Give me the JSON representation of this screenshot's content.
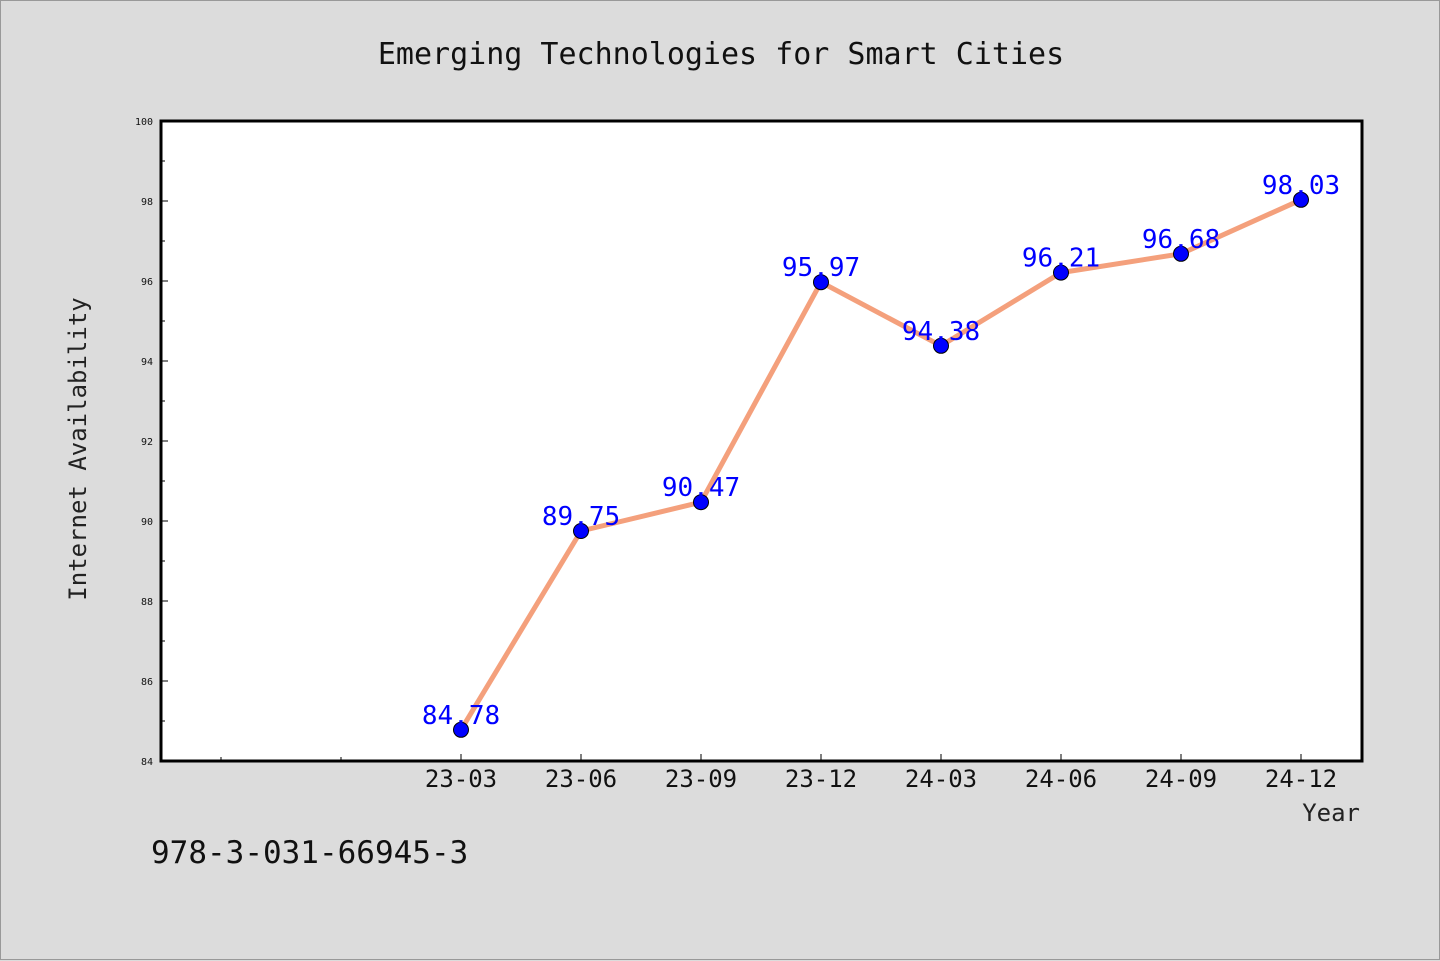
{
  "chart_data": {
    "type": "line",
    "title": "Emerging Technologies for Smart Cities",
    "xlabel": "Year",
    "ylabel": "Internet Availability",
    "categories": [
      "23-03",
      "23-06",
      "23-09",
      "23-12",
      "24-03",
      "24-06",
      "24-09",
      "24-12"
    ],
    "values": [
      84.78,
      89.75,
      90.47,
      95.97,
      94.38,
      96.21,
      96.68,
      98.03
    ],
    "data_labels": [
      "84.78",
      "89.75",
      "90.47",
      "95.97",
      "94.38",
      "96.21",
      "96.68",
      "98.03"
    ],
    "ylim": [
      84,
      100
    ],
    "yticks": [
      "84",
      "86",
      "88",
      "90",
      "92",
      "94",
      "96",
      "98",
      "100"
    ],
    "grid": false,
    "legend": "none",
    "line_color": "#f4a07c",
    "marker_color": "#0000ff",
    "label_color": "#0000ff"
  },
  "footer": {
    "isbn": "978-3-031-66945-3"
  }
}
